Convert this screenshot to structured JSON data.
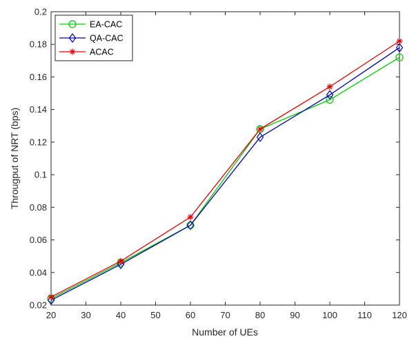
{
  "chart_data": {
    "type": "line",
    "title": "",
    "xlabel": "Number of UEs",
    "ylabel": "Througput of NRT (bps)",
    "xlim": [
      20,
      120
    ],
    "ylim": [
      0.02,
      0.2
    ],
    "xticks": [
      20,
      30,
      40,
      50,
      60,
      70,
      80,
      90,
      100,
      110,
      120
    ],
    "yticks": [
      0.02,
      0.04,
      0.06,
      0.08,
      0.1,
      0.12,
      0.14,
      0.16,
      0.18,
      0.2
    ],
    "xtick_labels": [
      "20",
      "30",
      "40",
      "50",
      "60",
      "70",
      "80",
      "90",
      "100",
      "110",
      "120"
    ],
    "ytick_labels": [
      "0.02",
      "0.04",
      "0.06",
      "0.08",
      "0.1",
      "0.12",
      "0.14",
      "0.16",
      "0.18",
      "0.2"
    ],
    "grid": false,
    "legend_position": "top-left",
    "x": [
      20,
      40,
      60,
      80,
      100,
      120
    ],
    "series": [
      {
        "name": "EA-CAC",
        "color": "#00cc00",
        "marker": "circle",
        "values": [
          0.024,
          0.046,
          0.069,
          0.128,
          0.146,
          0.172
        ]
      },
      {
        "name": "QA-CAC",
        "color": "#0000aa",
        "marker": "diamond",
        "values": [
          0.023,
          0.045,
          0.069,
          0.123,
          0.149,
          0.178
        ]
      },
      {
        "name": "ACAC",
        "color": "#e00000",
        "marker": "star",
        "values": [
          0.025,
          0.047,
          0.074,
          0.128,
          0.154,
          0.182
        ]
      }
    ]
  }
}
